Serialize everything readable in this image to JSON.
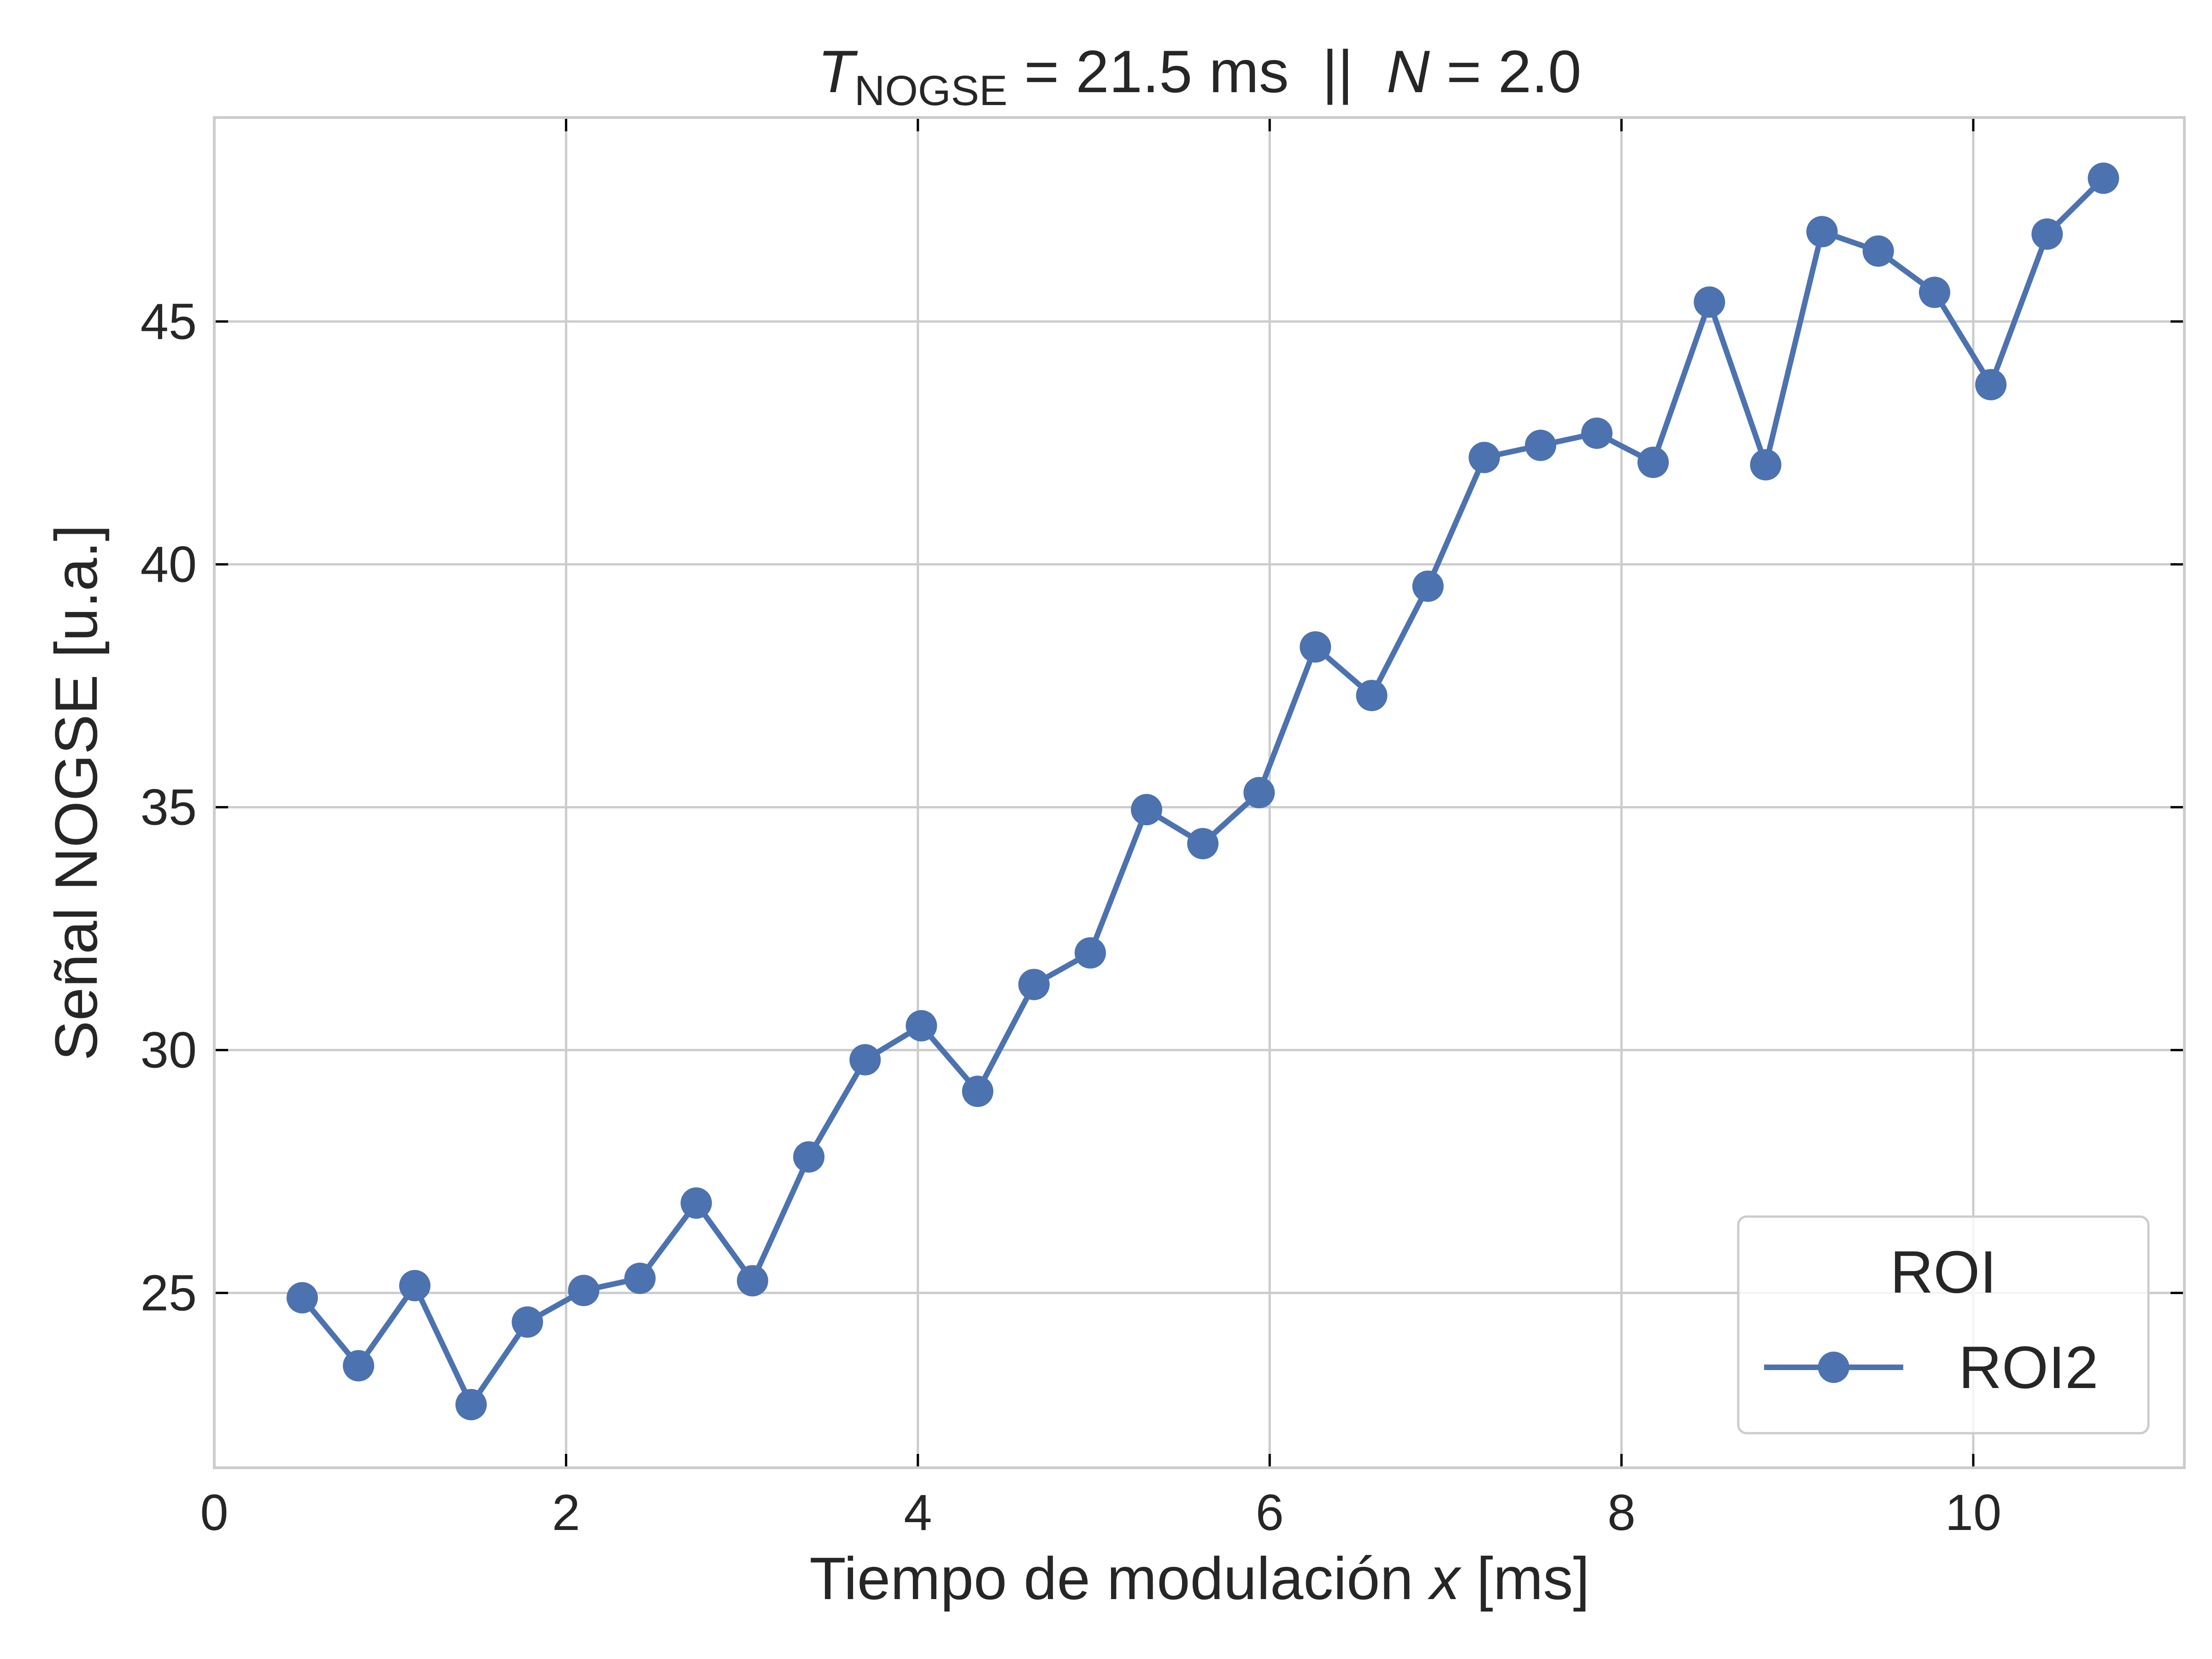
{
  "chart_data": {
    "type": "line",
    "title": {
      "prefix": "T",
      "subscript": "NOGSE",
      "middle": " = 21.5 ms  ||  ",
      "var": "N",
      "suffix": " = 2.0"
    },
    "xlabel": {
      "prefix": "Tiempo de modulación ",
      "var": "x",
      "suffix": " [ms]"
    },
    "ylabel": "Señal NOGSE [u.a.]",
    "xlim": [
      0,
      11.2
    ],
    "ylim": [
      21.4,
      49.2
    ],
    "xticks": [
      0,
      2,
      4,
      6,
      8,
      10
    ],
    "yticks": [
      25,
      30,
      35,
      40,
      45
    ],
    "grid": true,
    "legend": {
      "title": "ROI",
      "placement": "lower-right"
    },
    "series": [
      {
        "name": "ROI2",
        "color": "#4c72b0",
        "marker": "circle",
        "x": [
          0.5,
          0.82,
          1.14,
          1.46,
          1.78,
          2.1,
          2.42,
          2.74,
          3.06,
          3.38,
          3.7,
          4.02,
          4.34,
          4.66,
          4.98,
          5.3,
          5.62,
          5.94,
          6.26,
          6.58,
          6.9,
          7.22,
          7.54,
          7.86,
          8.18,
          8.5,
          8.82,
          9.14,
          9.46,
          9.78,
          10.1,
          10.42,
          10.74
        ],
        "y": [
          24.9,
          23.5,
          25.15,
          22.7,
          24.4,
          25.05,
          25.3,
          26.85,
          25.25,
          27.8,
          29.8,
          30.5,
          29.15,
          31.35,
          32.0,
          34.95,
          34.25,
          35.3,
          38.3,
          37.3,
          39.55,
          42.2,
          42.45,
          42.7,
          42.1,
          45.4,
          42.05,
          46.85,
          46.45,
          45.6,
          43.7,
          46.8,
          47.95
        ]
      }
    ]
  }
}
